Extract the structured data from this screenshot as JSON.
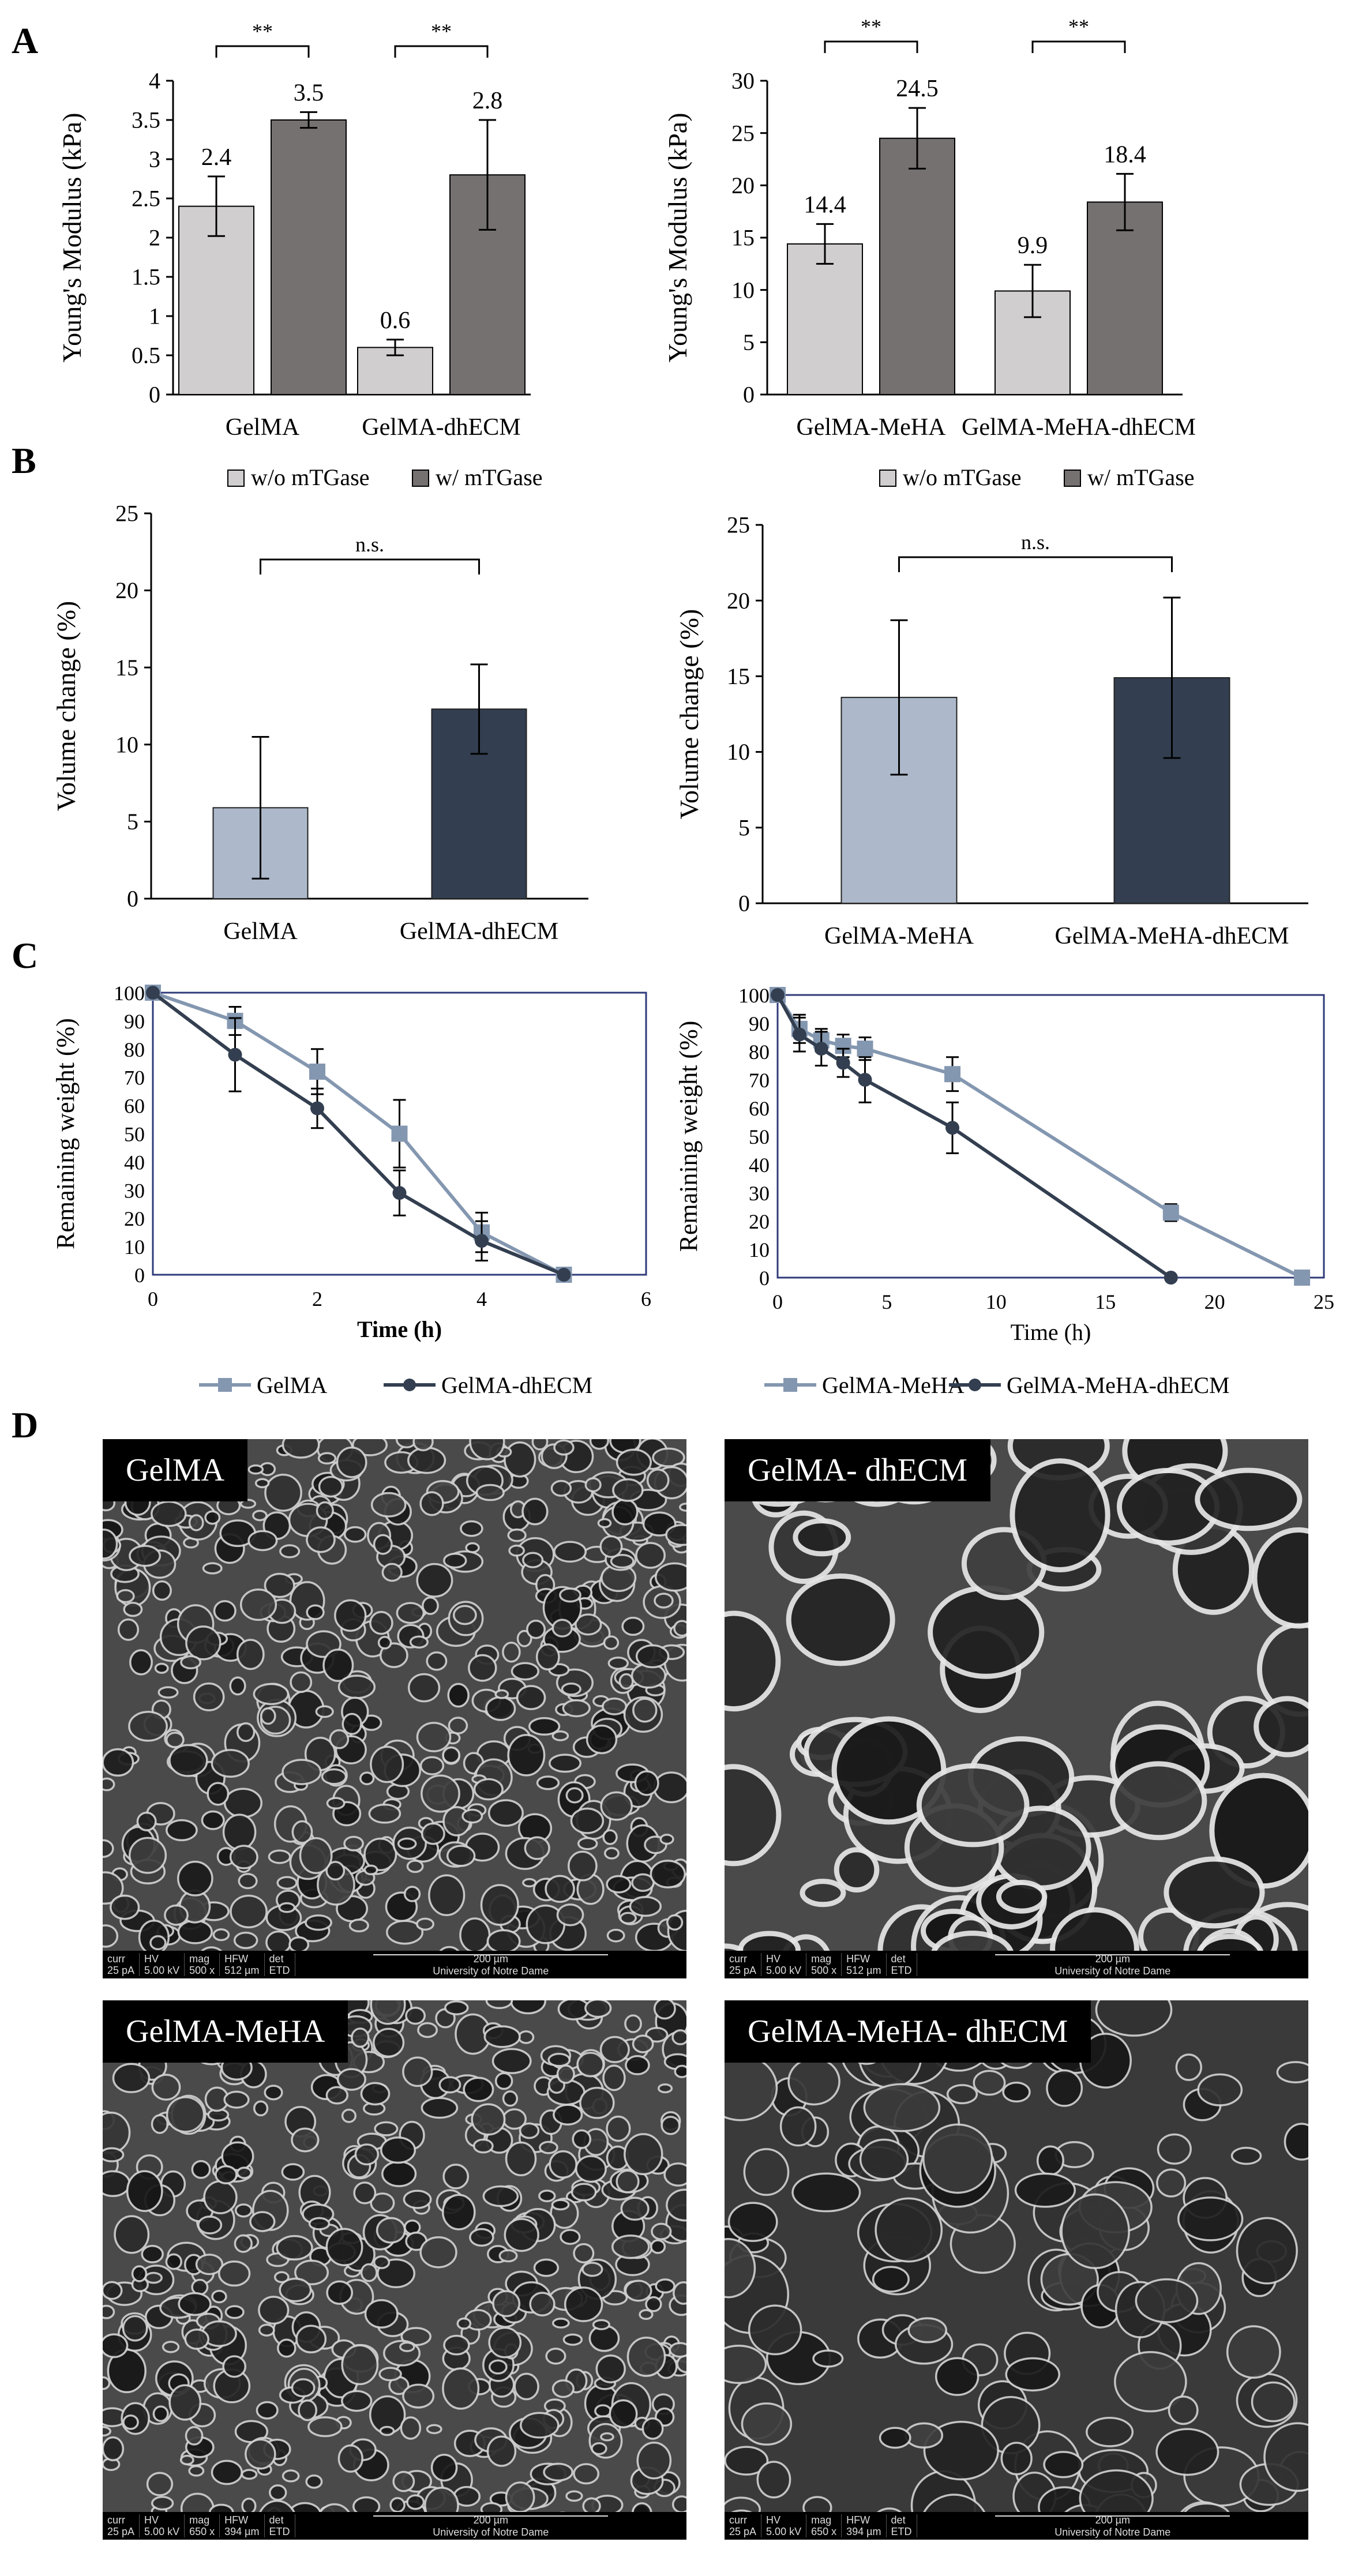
{
  "panels": {
    "a": "A",
    "b": "B",
    "c": "C",
    "d": "D"
  },
  "colors": {
    "light_gray": "#D0CECE",
    "dark_gray": "#767171",
    "light_blue": "#ADB9CA",
    "navy": "#333F50",
    "line_blue": "#8497B0",
    "line_navy": "#333F50"
  },
  "chart_data": [
    {
      "id": "A-left",
      "type": "bar",
      "categories": [
        "GelMA",
        "GelMA-dhECM"
      ],
      "series": [
        {
          "name": "w/o mTGase",
          "values": [
            2.4,
            0.6
          ],
          "errors": [
            0.38,
            0.1
          ]
        },
        {
          "name": "w/ mTGase",
          "values": [
            3.5,
            2.8
          ],
          "errors": [
            0.1,
            0.7
          ]
        }
      ],
      "value_labels": [
        [
          "2.4",
          "0.6"
        ],
        [
          "3.5",
          "2.8"
        ]
      ],
      "significance": [
        "**",
        "**"
      ],
      "ylabel": "Young's Modulus (kPa)",
      "ylim": [
        0,
        4
      ],
      "yticks": [
        "0",
        "0.5",
        "1",
        "1.5",
        "2",
        "2.5",
        "3",
        "3.5",
        "4"
      ],
      "legend": [
        "w/o mTGase",
        "w/ mTGase"
      ]
    },
    {
      "id": "A-right",
      "type": "bar",
      "categories": [
        "GelMA-MeHA",
        "GelMA-MeHA-dhECM"
      ],
      "series": [
        {
          "name": "w/o mTGase",
          "values": [
            14.4,
            9.9
          ],
          "errors": [
            1.9,
            2.5
          ]
        },
        {
          "name": "w/ mTGase",
          "values": [
            24.5,
            18.4
          ],
          "errors": [
            2.9,
            2.7
          ]
        }
      ],
      "value_labels": [
        [
          "14.4",
          "9.9"
        ],
        [
          "24.5",
          "18.4"
        ]
      ],
      "significance": [
        "**",
        "**"
      ],
      "ylabel": "Young's Modulus (kPa)",
      "ylim": [
        0,
        30
      ],
      "yticks": [
        "0",
        "5",
        "10",
        "15",
        "20",
        "25",
        "30"
      ],
      "legend": [
        "w/o mTGase",
        "w/ mTGase"
      ]
    },
    {
      "id": "B-left",
      "type": "bar",
      "categories": [
        "GelMA",
        "GelMA-dhECM"
      ],
      "values": [
        5.9,
        12.3
      ],
      "errors": [
        4.6,
        2.9
      ],
      "significance": "n.s.",
      "ylabel": "Volume change (%)",
      "ylim": [
        0,
        25
      ],
      "yticks": [
        "0",
        "5",
        "10",
        "15",
        "20",
        "25"
      ]
    },
    {
      "id": "B-right",
      "type": "bar",
      "categories": [
        "GelMA-MeHA",
        "GelMA-MeHA-dhECM"
      ],
      "values": [
        13.6,
        14.9
      ],
      "errors": [
        5.1,
        5.3
      ],
      "significance": "n.s.",
      "ylabel": "Volume change (%)",
      "ylim": [
        0,
        25
      ],
      "yticks": [
        "0",
        "5",
        "10",
        "15",
        "20",
        "25"
      ]
    },
    {
      "id": "C-left",
      "type": "line",
      "series": [
        {
          "name": "GelMA",
          "x": [
            0,
            1,
            2,
            3,
            4,
            5
          ],
          "y": [
            100,
            90,
            72,
            50,
            15,
            0
          ],
          "errors": [
            0,
            5,
            8,
            12,
            7,
            0
          ]
        },
        {
          "name": "GelMA-dhECM",
          "x": [
            0,
            1,
            2,
            3,
            4,
            5
          ],
          "y": [
            100,
            78,
            59,
            29,
            12,
            0
          ],
          "errors": [
            0,
            13,
            7,
            8,
            7,
            0
          ]
        }
      ],
      "xlabel": "Time (h)",
      "ylabel": "Remaining weight (%)",
      "xlim": [
        0,
        6
      ],
      "ylim": [
        0,
        100
      ],
      "xticks": [
        "0",
        "2",
        "4",
        "6"
      ],
      "yticks": [
        "0",
        "10",
        "20",
        "30",
        "40",
        "50",
        "60",
        "70",
        "80",
        "90",
        "100"
      ],
      "legend": [
        "GelMA",
        "GelMA-dhECM"
      ]
    },
    {
      "id": "C-right",
      "type": "line",
      "series": [
        {
          "name": "GelMA-MeHA",
          "x": [
            0,
            1,
            2,
            3,
            4,
            8,
            18,
            24
          ],
          "y": [
            100,
            88,
            84,
            82,
            81,
            72,
            23,
            0
          ],
          "errors": [
            0,
            5,
            4,
            4,
            4,
            6,
            3,
            0
          ]
        },
        {
          "name": "GelMA-MeHA-dhECM",
          "x": [
            0,
            1,
            2,
            3,
            4,
            8,
            18
          ],
          "y": [
            100,
            86,
            81,
            76,
            70,
            53,
            0
          ],
          "errors": [
            0,
            6,
            6,
            5,
            8,
            9,
            0
          ]
        }
      ],
      "xlabel": "Time (h)",
      "ylabel": "Remaining weight (%)",
      "xlim": [
        0,
        25
      ],
      "ylim": [
        0,
        100
      ],
      "xticks": [
        "0",
        "5",
        "10",
        "15",
        "20",
        "25"
      ],
      "yticks": [
        "0",
        "10",
        "20",
        "30",
        "40",
        "50",
        "60",
        "70",
        "80",
        "90",
        "100"
      ],
      "legend": [
        "GelMA-MeHA",
        "GelMA-MeHA-dhECM"
      ]
    }
  ],
  "sem_images": [
    {
      "label": "GelMA",
      "info": {
        "curr": "25 pA",
        "hv": "5.00 kV",
        "mag": "500 x",
        "hfw": "512 µm",
        "det": "ETD"
      },
      "scale": "200 µm",
      "org": "University of Notre Dame"
    },
    {
      "label": "GelMA- dhECM",
      "info": {
        "curr": "25 pA",
        "hv": "5.00 kV",
        "mag": "500 x",
        "hfw": "512 µm",
        "det": "ETD"
      },
      "scale": "200 µm",
      "org": "University of Notre Dame"
    },
    {
      "label": "GelMA-MeHA",
      "info": {
        "curr": "25 pA",
        "hv": "5.00 kV",
        "mag": "650 x",
        "hfw": "394 µm",
        "det": "ETD"
      },
      "scale": "200 µm",
      "org": "University of Notre Dame"
    },
    {
      "label": "GelMA-MeHA- dhECM",
      "info": {
        "curr": "25 pA",
        "hv": "5.00 kV",
        "mag": "650 x",
        "hfw": "394 µm",
        "det": "ETD"
      },
      "scale": "200 µm",
      "org": "University of Notre Dame"
    }
  ],
  "sem_bar_headers": {
    "curr": "curr",
    "hv": "HV",
    "mag": "mag",
    "hfw": "HFW",
    "det": "det"
  }
}
